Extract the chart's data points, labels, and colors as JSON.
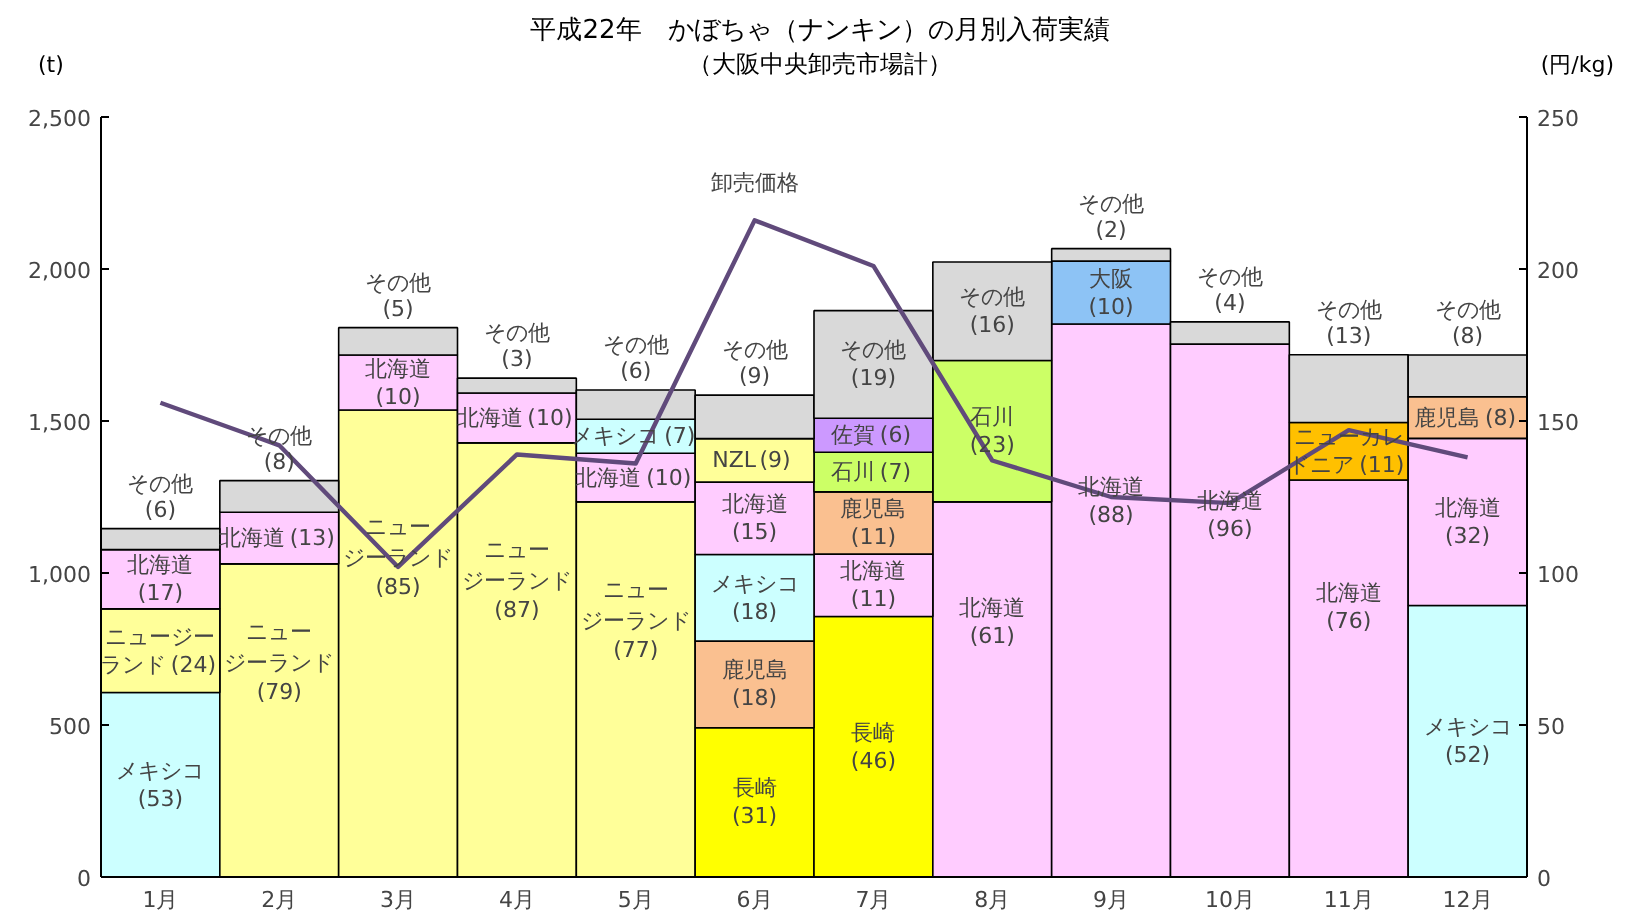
{
  "chart_data": {
    "type": "bar",
    "stacked": true,
    "title": "平成22年　かぼちゃ（ナンキン）の月別入荷実績",
    "subtitle": "（大阪中央卸売市場計）",
    "ylabel": "(t)",
    "y2label": "(円/kg)",
    "categories": [
      "1月",
      "2月",
      "3月",
      "4月",
      "5月",
      "6月",
      "7月",
      "8月",
      "9月",
      "10月",
      "11月",
      "12月"
    ],
    "ylim": [
      0,
      2500
    ],
    "yticks": [
      0,
      500,
      {
        "value": 1000,
        "label": "1,000"
      },
      {
        "value": 1500,
        "label": "1,500"
      },
      {
        "value": 2000,
        "label": "2,000"
      },
      {
        "value": 2500,
        "label": "2,500"
      }
    ],
    "y2lim": [
      0,
      250
    ],
    "y2ticks": [
      0,
      50,
      100,
      150,
      200,
      250
    ],
    "grid": false,
    "series": [
      {
        "values": [
          607,
          1030,
          1536,
          1428,
          1234,
          491,
          857,
          1234,
          1819,
          1753,
          1306,
          893
        ],
        "colors": [
          "#ccffff",
          "#ffff99",
          "#ffff99",
          "#ffff99",
          "#ffff99",
          "#ffff00",
          "#ffff00",
          "#ffccff",
          "#ffccff",
          "#ffccff",
          "#ffccff",
          "#ccffff"
        ],
        "value_labels": [
          "メキシコ",
          "ニュージーランド",
          "ニュージーランド",
          "ニュージーランド",
          "ニュージーランド",
          "長崎",
          "長崎",
          "北海道",
          "北海道",
          "北海道",
          "北海道",
          "メキシコ"
        ]
      },
      {
        "values": [
          275,
          170,
          181,
          164,
          160,
          285,
          205,
          465,
          207,
          73,
          189,
          550
        ],
        "colors": [
          "#ffff99",
          "#ffccff",
          "#ffccff",
          "#ffccff",
          "#ffccff",
          "#fac090",
          "#ffccff",
          "#ccff66",
          "#8dc3f5",
          "#d9d9d9",
          "#ffc000",
          "#ffccff"
        ],
        "value_labels": [
          "ニュージーランド",
          "北海道",
          "北海道",
          "北海道",
          "北海道",
          "鹿児島",
          "北海道",
          "石川",
          "大阪",
          "その他",
          "ニューカレドニア",
          "北海道"
        ]
      },
      {
        "values": [
          195,
          104,
          90,
          49,
          112,
          285,
          205,
          324,
          41,
          null,
          223,
          137
        ],
        "colors": [
          "#ffccff",
          "#d9d9d9",
          "#d9d9d9",
          "#d9d9d9",
          "#ccffff",
          "#ccffff",
          "#fac090",
          "#d9d9d9",
          "#d9d9d9",
          null,
          "#d9d9d9",
          "#fac090"
        ],
        "value_labels": [
          "北海道",
          "その他",
          "その他",
          "その他",
          "メキシコ",
          "メキシコ",
          "鹿児島",
          "その他",
          "その他",
          null,
          "その他",
          "鹿児島"
        ]
      },
      {
        "values": [
          69,
          null,
          null,
          null,
          96,
          238,
          130,
          null,
          null,
          null,
          null,
          137
        ],
        "colors": [
          "#d9d9d9",
          null,
          null,
          null,
          "#d9d9d9",
          "#ffccff",
          "#ccff66",
          null,
          null,
          null,
          null,
          "#d9d9d9"
        ],
        "value_labels": [
          "その他",
          null,
          null,
          null,
          "その他",
          "北海道",
          "石川",
          null,
          null,
          null,
          null,
          "その他"
        ]
      },
      {
        "values": [
          null,
          null,
          null,
          null,
          null,
          143,
          112,
          null,
          null,
          null,
          null,
          null
        ],
        "colors": [
          null,
          null,
          null,
          null,
          null,
          "#ffff99",
          "#cc99ff",
          null,
          null,
          null,
          null,
          null
        ],
        "value_labels": [
          null,
          null,
          null,
          null,
          null,
          "NZL",
          "佐賀",
          null,
          null,
          null,
          null,
          null
        ]
      },
      {
        "values": [
          null,
          null,
          null,
          null,
          null,
          143,
          354,
          null,
          null,
          null,
          null,
          null
        ],
        "colors": [
          null,
          null,
          null,
          null,
          null,
          "#d9d9d9",
          "#d9d9d9",
          null,
          null,
          null,
          null,
          null
        ],
        "value_labels": [
          null,
          null,
          null,
          null,
          null,
          "その他",
          "その他",
          null,
          null,
          null,
          null,
          null
        ]
      },
      {
        "type": "line",
        "axis": "y2",
        "name": "卸売価格",
        "color": "#604a7b",
        "marker": "none",
        "line_style": "solid",
        "values": [
          156,
          142,
          102,
          139,
          136,
          216,
          201,
          137,
          125,
          123,
          147,
          138
        ]
      }
    ],
    "annotations": [
      "(53)",
      "(24)",
      "(17)",
      "(6)",
      "(79)",
      "(13)",
      "(8)",
      "(85)",
      "(10)",
      "(5)",
      "(87)",
      "(10)",
      "(3)",
      "(77)",
      "(10)",
      "(7)",
      "(6)",
      "(31)",
      "(18)",
      "(18)",
      "(15)",
      "(9)",
      "(9)",
      "(46)",
      "(11)",
      "(11)",
      "(7)",
      "(6)",
      "(19)",
      "(61)",
      "(23)",
      "(16)",
      "(88)",
      "(10)",
      "(2)",
      "(96)",
      "(4)",
      "(76)",
      "(11)",
      "(13)",
      "(52)",
      "(32)",
      "(8)",
      "(8)"
    ]
  }
}
